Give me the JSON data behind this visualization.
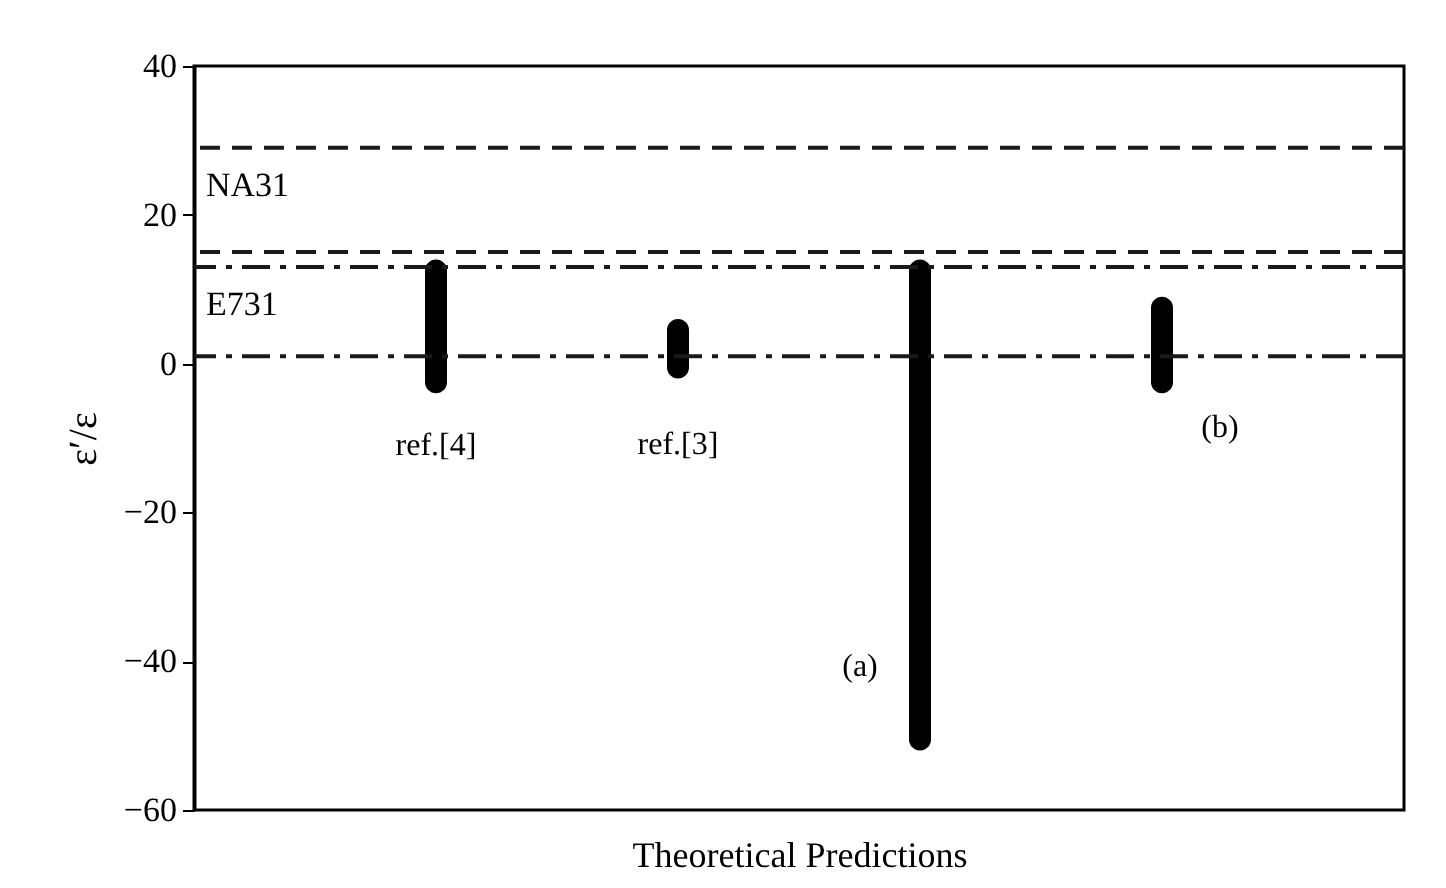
{
  "chart_data": {
    "type": "bar",
    "xlabel": "Theoretical Predictions",
    "ylabel": "ε′/ε",
    "categories": [
      "ref.[4]",
      "ref.[3]",
      "(a)",
      "(b)"
    ],
    "base": [
      -4,
      -2,
      -52,
      -4
    ],
    "values": [
      18,
      8,
      66,
      13
    ],
    "color": "#000000",
    "ylim": [
      -60,
      40
    ],
    "yticks": [
      -60,
      -40,
      -20,
      0,
      20,
      40
    ],
    "grid": false,
    "tick_labels": "y",
    "ref_lines": [
      {
        "axis": "y",
        "value": 29,
        "label": "NA31",
        "line_style": "dashed",
        "color": "#1a1a1a"
      },
      {
        "axis": "y",
        "value": 15,
        "line_style": "dashed",
        "color": "#1a1a1a"
      },
      {
        "axis": "y",
        "value": 13,
        "label": "E731",
        "line_style": "dashdot",
        "color": "#1a1a1a"
      },
      {
        "axis": "y",
        "value": 1,
        "line_style": "dashdot",
        "color": "#1a1a1a"
      }
    ]
  }
}
